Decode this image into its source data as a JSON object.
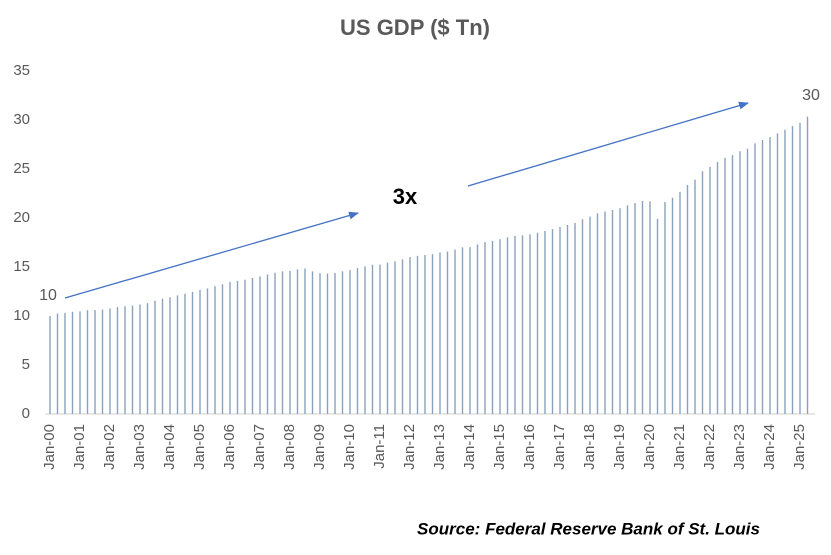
{
  "chart_data": {
    "type": "bar",
    "title": "US GDP ($ Tn)",
    "categories": [
      "Jan-00",
      null,
      null,
      null,
      "Jan-01",
      null,
      null,
      null,
      "Jan-02",
      null,
      null,
      null,
      "Jan-03",
      null,
      null,
      null,
      "Jan-04",
      null,
      null,
      null,
      "Jan-05",
      null,
      null,
      null,
      "Jan-06",
      null,
      null,
      null,
      "Jan-07",
      null,
      null,
      null,
      "Jan-08",
      null,
      null,
      null,
      "Jan-09",
      null,
      null,
      null,
      "Jan-10",
      null,
      null,
      null,
      "Jan-11",
      null,
      null,
      null,
      "Jan-12",
      null,
      null,
      null,
      "Jan-13",
      null,
      null,
      null,
      "Jan-14",
      null,
      null,
      null,
      "Jan-15",
      null,
      null,
      null,
      "Jan-16",
      null,
      null,
      null,
      "Jan-17",
      null,
      null,
      null,
      "Jan-18",
      null,
      null,
      null,
      "Jan-19",
      null,
      null,
      null,
      "Jan-20",
      null,
      null,
      null,
      "Jan-21",
      null,
      null,
      null,
      "Jan-22",
      null,
      null,
      null,
      "Jan-23",
      null,
      null,
      null,
      "Jan-24",
      null,
      null,
      null,
      "Jan-25",
      null
    ],
    "values": [
      10.0,
      10.25,
      10.32,
      10.43,
      10.47,
      10.6,
      10.6,
      10.66,
      10.78,
      10.9,
      11.0,
      11.06,
      11.17,
      11.31,
      11.57,
      11.77,
      11.92,
      12.1,
      12.27,
      12.46,
      12.67,
      12.82,
      13.04,
      13.24,
      13.48,
      13.59,
      13.7,
      13.88,
      14.04,
      14.23,
      14.41,
      14.56,
      14.61,
      14.77,
      14.85,
      14.55,
      14.38,
      14.34,
      14.4,
      14.56,
      14.68,
      14.88,
      15.06,
      15.23,
      15.24,
      15.46,
      15.59,
      15.79,
      16.02,
      16.13,
      16.23,
      16.3,
      16.48,
      16.58,
      16.78,
      17.0,
      17.03,
      17.3,
      17.55,
      17.66,
      17.85,
      18.04,
      18.17,
      18.24,
      18.33,
      18.49,
      18.67,
      18.87,
      19.09,
      19.28,
      19.5,
      19.88,
      20.14,
      20.49,
      20.66,
      20.81,
      21.0,
      21.29,
      21.53,
      21.73,
      21.71,
      19.91,
      21.63,
      22.07,
      22.66,
      23.37,
      23.92,
      24.78,
      25.22,
      25.72,
      26.14,
      26.41,
      26.81,
      27.06,
      27.61,
      27.96,
      28.27,
      28.63,
      29.02,
      29.37,
      29.72,
      30.35
    ],
    "color": "#8aa3bd",
    "ylim": [
      0,
      35
    ],
    "yticks": [
      0,
      5,
      10,
      15,
      20,
      25,
      30,
      35
    ],
    "grid": false,
    "annotations": [
      "10",
      "30",
      "3x"
    ],
    "source": "Source: Federal Reserve Bank of St. Louis"
  }
}
